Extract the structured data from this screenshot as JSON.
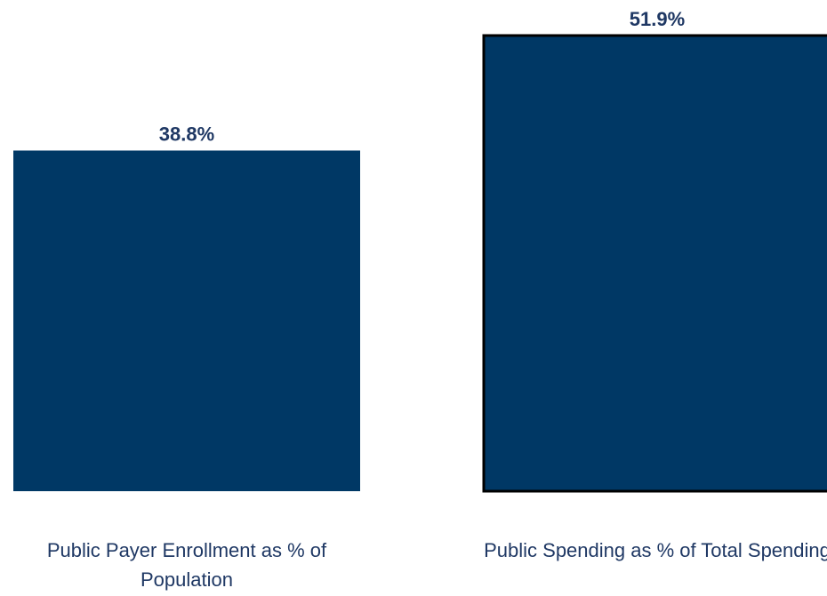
{
  "chart_data": {
    "type": "bar",
    "categories": [
      "Public Payer Enrollment as % of Population",
      "Public Spending as % of Total Spending"
    ],
    "values": [
      38.8,
      51.9
    ],
    "value_labels": [
      "38.8%",
      "51.9%"
    ],
    "unit": "%",
    "title": "",
    "xlabel": "",
    "ylabel": "",
    "ylim": [
      0,
      51.9
    ],
    "grid": false,
    "legend": "none",
    "colors": {
      "bar_fill": "#003865",
      "bar_outline_second": "#000000",
      "label_text": "#1f3864",
      "category_text": "#1f3864"
    }
  }
}
